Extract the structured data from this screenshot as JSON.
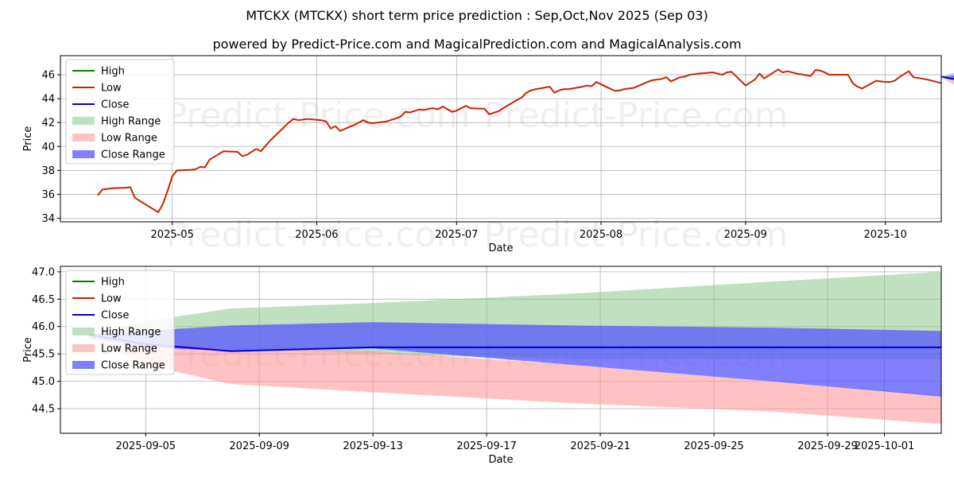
{
  "title": "MTCKX (MTCKX) short term price prediction : Sep,Oct,Nov 2025 (Sep 03)",
  "subtitle": "powered by Predict-Price.com and MagicalPrediction.com and MagicalAnalysis.com",
  "watermark": "Predict-Price.com",
  "legend_labels": [
    "High",
    "Low",
    "Close",
    "High Range",
    "Low Range",
    "Close Range"
  ],
  "colors": {
    "high": "#008000",
    "low": "#cc2200",
    "close": "#0000cc",
    "high_range": "#8cc88c",
    "low_range": "#ff9999",
    "close_range": "#5555ff",
    "grid": "#b0b0b0"
  },
  "chart_data": [
    {
      "type": "line",
      "xlabel": "Date",
      "ylabel": "Price",
      "xlim": [
        "2025-04-07",
        "2025-10-13"
      ],
      "ylim": [
        33.7,
        47.6
      ],
      "grid": true,
      "legend_placement": "top-left",
      "x_ticks": [
        "2025-05",
        "2025-06",
        "2025-07",
        "2025-08",
        "2025-09",
        "2025-10"
      ],
      "x_tick_dates": [
        "2025-05-01",
        "2025-06-01",
        "2025-07-01",
        "2025-08-01",
        "2025-09-01",
        "2025-10-01"
      ],
      "y_ticks": [
        34,
        36,
        38,
        40,
        42,
        44,
        46
      ],
      "history": {
        "name": "Low",
        "points": [
          [
            "2025-04-15",
            35.9
          ],
          [
            "2025-04-16",
            36.4
          ],
          [
            "2025-04-17",
            36.45
          ],
          [
            "2025-04-18",
            36.5
          ],
          [
            "2025-04-21",
            36.55
          ],
          [
            "2025-04-22",
            36.6
          ],
          [
            "2025-04-23",
            35.7
          ],
          [
            "2025-04-28",
            34.5
          ],
          [
            "2025-04-29",
            35.2
          ],
          [
            "2025-04-30",
            36.3
          ],
          [
            "2025-05-01",
            37.5
          ],
          [
            "2025-05-02",
            38.0
          ],
          [
            "2025-05-05",
            38.05
          ],
          [
            "2025-05-06",
            38.1
          ],
          [
            "2025-05-07",
            38.3
          ],
          [
            "2025-05-08",
            38.25
          ],
          [
            "2025-05-09",
            38.9
          ],
          [
            "2025-05-12",
            39.6
          ],
          [
            "2025-05-15",
            39.55
          ],
          [
            "2025-05-16",
            39.2
          ],
          [
            "2025-05-17",
            39.3
          ],
          [
            "2025-05-19",
            39.8
          ],
          [
            "2025-05-20",
            39.6
          ],
          [
            "2025-05-22",
            40.5
          ],
          [
            "2025-05-26",
            42.0
          ],
          [
            "2025-05-27",
            42.3
          ],
          [
            "2025-05-28",
            42.2
          ],
          [
            "2025-05-29",
            42.25
          ],
          [
            "2025-05-30",
            42.3
          ],
          [
            "2025-06-02",
            42.2
          ],
          [
            "2025-06-03",
            42.1
          ],
          [
            "2025-06-04",
            41.5
          ],
          [
            "2025-06-05",
            41.7
          ],
          [
            "2025-06-06",
            41.3
          ],
          [
            "2025-06-09",
            41.8
          ],
          [
            "2025-06-11",
            42.2
          ],
          [
            "2025-06-12",
            42.0
          ],
          [
            "2025-06-13",
            41.95
          ],
          [
            "2025-06-16",
            42.1
          ],
          [
            "2025-06-18",
            42.35
          ],
          [
            "2025-06-19",
            42.5
          ],
          [
            "2025-06-20",
            42.9
          ],
          [
            "2025-06-21",
            42.85
          ],
          [
            "2025-06-23",
            43.1
          ],
          [
            "2025-06-24",
            43.05
          ],
          [
            "2025-06-25",
            43.15
          ],
          [
            "2025-06-26",
            43.2
          ],
          [
            "2025-06-27",
            43.1
          ],
          [
            "2025-06-28",
            43.35
          ],
          [
            "2025-06-30",
            42.9
          ],
          [
            "2025-07-01",
            43.0
          ],
          [
            "2025-07-02",
            43.2
          ],
          [
            "2025-07-03",
            43.4
          ],
          [
            "2025-07-04",
            43.2
          ],
          [
            "2025-07-07",
            43.15
          ],
          [
            "2025-07-08",
            42.7
          ],
          [
            "2025-07-10",
            42.95
          ],
          [
            "2025-07-11",
            43.2
          ],
          [
            "2025-07-14",
            43.9
          ],
          [
            "2025-07-15",
            44.1
          ],
          [
            "2025-07-16",
            44.5
          ],
          [
            "2025-07-17",
            44.7
          ],
          [
            "2025-07-18",
            44.8
          ],
          [
            "2025-07-21",
            45.0
          ],
          [
            "2025-07-22",
            44.5
          ],
          [
            "2025-07-23",
            44.7
          ],
          [
            "2025-07-24",
            44.8
          ],
          [
            "2025-07-25",
            44.8
          ],
          [
            "2025-07-28",
            45.0
          ],
          [
            "2025-07-29",
            45.1
          ],
          [
            "2025-07-30",
            45.05
          ],
          [
            "2025-07-31",
            45.4
          ],
          [
            "2025-08-01",
            45.2
          ],
          [
            "2025-08-04",
            44.65
          ],
          [
            "2025-08-05",
            44.7
          ],
          [
            "2025-08-06",
            44.8
          ],
          [
            "2025-08-07",
            44.85
          ],
          [
            "2025-08-08",
            44.9
          ],
          [
            "2025-08-11",
            45.4
          ],
          [
            "2025-08-12",
            45.55
          ],
          [
            "2025-08-13",
            45.6
          ],
          [
            "2025-08-14",
            45.65
          ],
          [
            "2025-08-15",
            45.8
          ],
          [
            "2025-08-16",
            45.45
          ],
          [
            "2025-08-18",
            45.8
          ],
          [
            "2025-08-19",
            45.85
          ],
          [
            "2025-08-20",
            46.0
          ],
          [
            "2025-08-21",
            46.05
          ],
          [
            "2025-08-22",
            46.1
          ],
          [
            "2025-08-25",
            46.2
          ],
          [
            "2025-08-26",
            46.1
          ],
          [
            "2025-08-27",
            46.0
          ],
          [
            "2025-08-28",
            46.2
          ],
          [
            "2025-08-29",
            46.25
          ],
          [
            "2025-09-01",
            45.1
          ],
          [
            "2025-09-03",
            45.6
          ],
          [
            "2025-09-04",
            46.1
          ],
          [
            "2025-09-05",
            45.7
          ],
          [
            "2025-09-08",
            46.45
          ],
          [
            "2025-09-09",
            46.2
          ],
          [
            "2025-09-10",
            46.3
          ],
          [
            "2025-09-11",
            46.2
          ],
          [
            "2025-09-12",
            46.1
          ],
          [
            "2025-09-15",
            45.9
          ],
          [
            "2025-09-16",
            46.4
          ],
          [
            "2025-09-17",
            46.35
          ],
          [
            "2025-09-18",
            46.2
          ],
          [
            "2025-09-19",
            46.0
          ],
          [
            "2025-09-22",
            46.0
          ],
          [
            "2025-09-23",
            46.0
          ],
          [
            "2025-09-24",
            45.3
          ],
          [
            "2025-09-25",
            45.0
          ],
          [
            "2025-09-26",
            44.85
          ],
          [
            "2025-09-29",
            45.5
          ],
          [
            "2025-09-30",
            45.45
          ],
          [
            "2025-10-01",
            45.4
          ],
          [
            "2025-10-02",
            45.4
          ],
          [
            "2025-10-03",
            45.5
          ],
          [
            "2025-10-04",
            45.8
          ],
          [
            "2025-10-06",
            46.3
          ],
          [
            "2025-10-07",
            45.8
          ],
          [
            "2025-10-10",
            45.6
          ],
          [
            "2025-10-11",
            45.5
          ],
          [
            "2025-10-13",
            45.3
          ]
        ]
      }
    },
    {
      "type": "area",
      "xlabel": "Date",
      "ylabel": "Price",
      "xlim": [
        "2025-09-02",
        "2025-10-03"
      ],
      "ylim": [
        44.05,
        47.1
      ],
      "grid": true,
      "legend_placement": "top-left",
      "x_ticks": [
        "2025-09-05",
        "2025-09-09",
        "2025-09-13",
        "2025-09-17",
        "2025-09-21",
        "2025-09-25",
        "2025-09-29",
        "2025-10-01"
      ],
      "y_ticks": [
        44.5,
        45.0,
        45.5,
        46.0,
        46.5,
        47.0
      ],
      "forecast": {
        "dates": [
          "2025-09-03",
          "2025-09-05",
          "2025-09-08",
          "2025-09-13",
          "2025-09-20",
          "2025-09-27",
          "2025-10-03"
        ],
        "close": [
          45.85,
          45.68,
          45.55,
          45.62,
          45.62,
          45.62,
          45.62
        ],
        "high_range": [
          [
            45.85,
            45.85
          ],
          [
            45.7,
            46.1
          ],
          [
            45.6,
            46.33
          ],
          [
            45.5,
            46.43
          ],
          [
            45.4,
            46.6
          ],
          [
            45.4,
            46.82
          ],
          [
            45.4,
            47.0
          ]
        ],
        "low_range": [
          [
            45.8,
            45.85
          ],
          [
            45.3,
            45.7
          ],
          [
            44.95,
            45.6
          ],
          [
            44.8,
            45.55
          ],
          [
            44.6,
            45.3
          ],
          [
            44.45,
            45.0
          ],
          [
            44.22,
            44.75
          ]
        ],
        "close_range": [
          [
            45.8,
            45.85
          ],
          [
            45.62,
            45.92
          ],
          [
            45.55,
            46.02
          ],
          [
            45.6,
            46.08
          ],
          [
            45.3,
            46.02
          ],
          [
            45.0,
            45.98
          ],
          [
            44.72,
            45.92
          ]
        ]
      }
    }
  ]
}
